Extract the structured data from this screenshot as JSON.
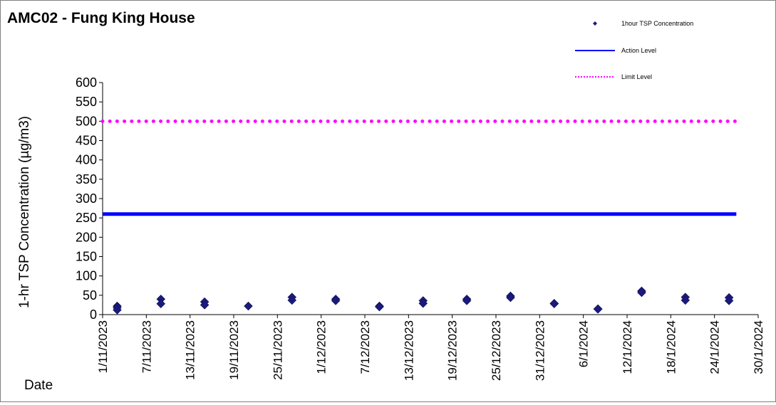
{
  "chart_data": {
    "type": "scatter",
    "title": "AMC02 - Fung King House",
    "ylabel": "1-hr TSP Concentration (µg/m3)",
    "xlabel": "Date",
    "ylim": [
      0,
      600
    ],
    "yticks": [
      0,
      50,
      100,
      150,
      200,
      250,
      300,
      350,
      400,
      450,
      500,
      550,
      600
    ],
    "xlim": [
      "2023-11-01",
      "2024-01-30"
    ],
    "xticks": [
      "2023-11-01",
      "2023-11-07",
      "2023-11-13",
      "2023-11-19",
      "2023-11-25",
      "2023-12-01",
      "2023-12-07",
      "2023-12-13",
      "2023-12-19",
      "2023-12-25",
      "2023-12-31",
      "2024-01-06",
      "2024-01-12",
      "2024-01-18",
      "2024-01-24",
      "2024-01-30"
    ],
    "xtick_labels": [
      "1/11/2023",
      "7/11/2023",
      "13/11/2023",
      "19/11/2023",
      "25/11/2023",
      "1/12/2023",
      "7/12/2023",
      "13/12/2023",
      "19/12/2023",
      "25/12/2023",
      "31/12/2023",
      "6/1/2024",
      "12/1/2024",
      "18/1/2024",
      "24/1/2024",
      "30/1/2024"
    ],
    "grid": false,
    "legend_position": "top-right",
    "series": [
      {
        "name": "1hour TSP Concentration",
        "kind": "scatter",
        "marker": "diamond",
        "color": "#1a1a7a",
        "points": [
          {
            "x": "2023-11-03",
            "y": 22
          },
          {
            "x": "2023-11-03",
            "y": 18
          },
          {
            "x": "2023-11-03",
            "y": 12
          },
          {
            "x": "2023-11-09",
            "y": 40
          },
          {
            "x": "2023-11-09",
            "y": 28
          },
          {
            "x": "2023-11-15",
            "y": 33
          },
          {
            "x": "2023-11-15",
            "y": 25
          },
          {
            "x": "2023-11-21",
            "y": 22
          },
          {
            "x": "2023-11-27",
            "y": 45
          },
          {
            "x": "2023-11-27",
            "y": 37
          },
          {
            "x": "2023-12-03",
            "y": 40
          },
          {
            "x": "2023-12-03",
            "y": 36
          },
          {
            "x": "2023-12-09",
            "y": 22
          },
          {
            "x": "2023-12-09",
            "y": 20
          },
          {
            "x": "2023-12-15",
            "y": 36
          },
          {
            "x": "2023-12-15",
            "y": 29
          },
          {
            "x": "2023-12-21",
            "y": 40
          },
          {
            "x": "2023-12-21",
            "y": 36
          },
          {
            "x": "2023-12-27",
            "y": 48
          },
          {
            "x": "2023-12-27",
            "y": 44
          },
          {
            "x": "2024-01-02",
            "y": 29
          },
          {
            "x": "2024-01-02",
            "y": 28
          },
          {
            "x": "2024-01-08",
            "y": 15
          },
          {
            "x": "2024-01-08",
            "y": 14
          },
          {
            "x": "2024-01-14",
            "y": 61
          },
          {
            "x": "2024-01-14",
            "y": 57
          },
          {
            "x": "2024-01-20",
            "y": 45
          },
          {
            "x": "2024-01-20",
            "y": 37
          },
          {
            "x": "2024-01-26",
            "y": 44
          },
          {
            "x": "2024-01-26",
            "y": 36
          }
        ]
      },
      {
        "name": "Action Level",
        "kind": "line",
        "style": "solid",
        "color": "#0000ff",
        "x_start": "2023-11-01",
        "x_end": "2024-01-27",
        "y": 260
      },
      {
        "name": "Limit Level",
        "kind": "line",
        "style": "dotted",
        "color": "#ff00ff",
        "x_start": "2023-11-01",
        "x_end": "2024-01-27",
        "y": 500
      }
    ]
  }
}
